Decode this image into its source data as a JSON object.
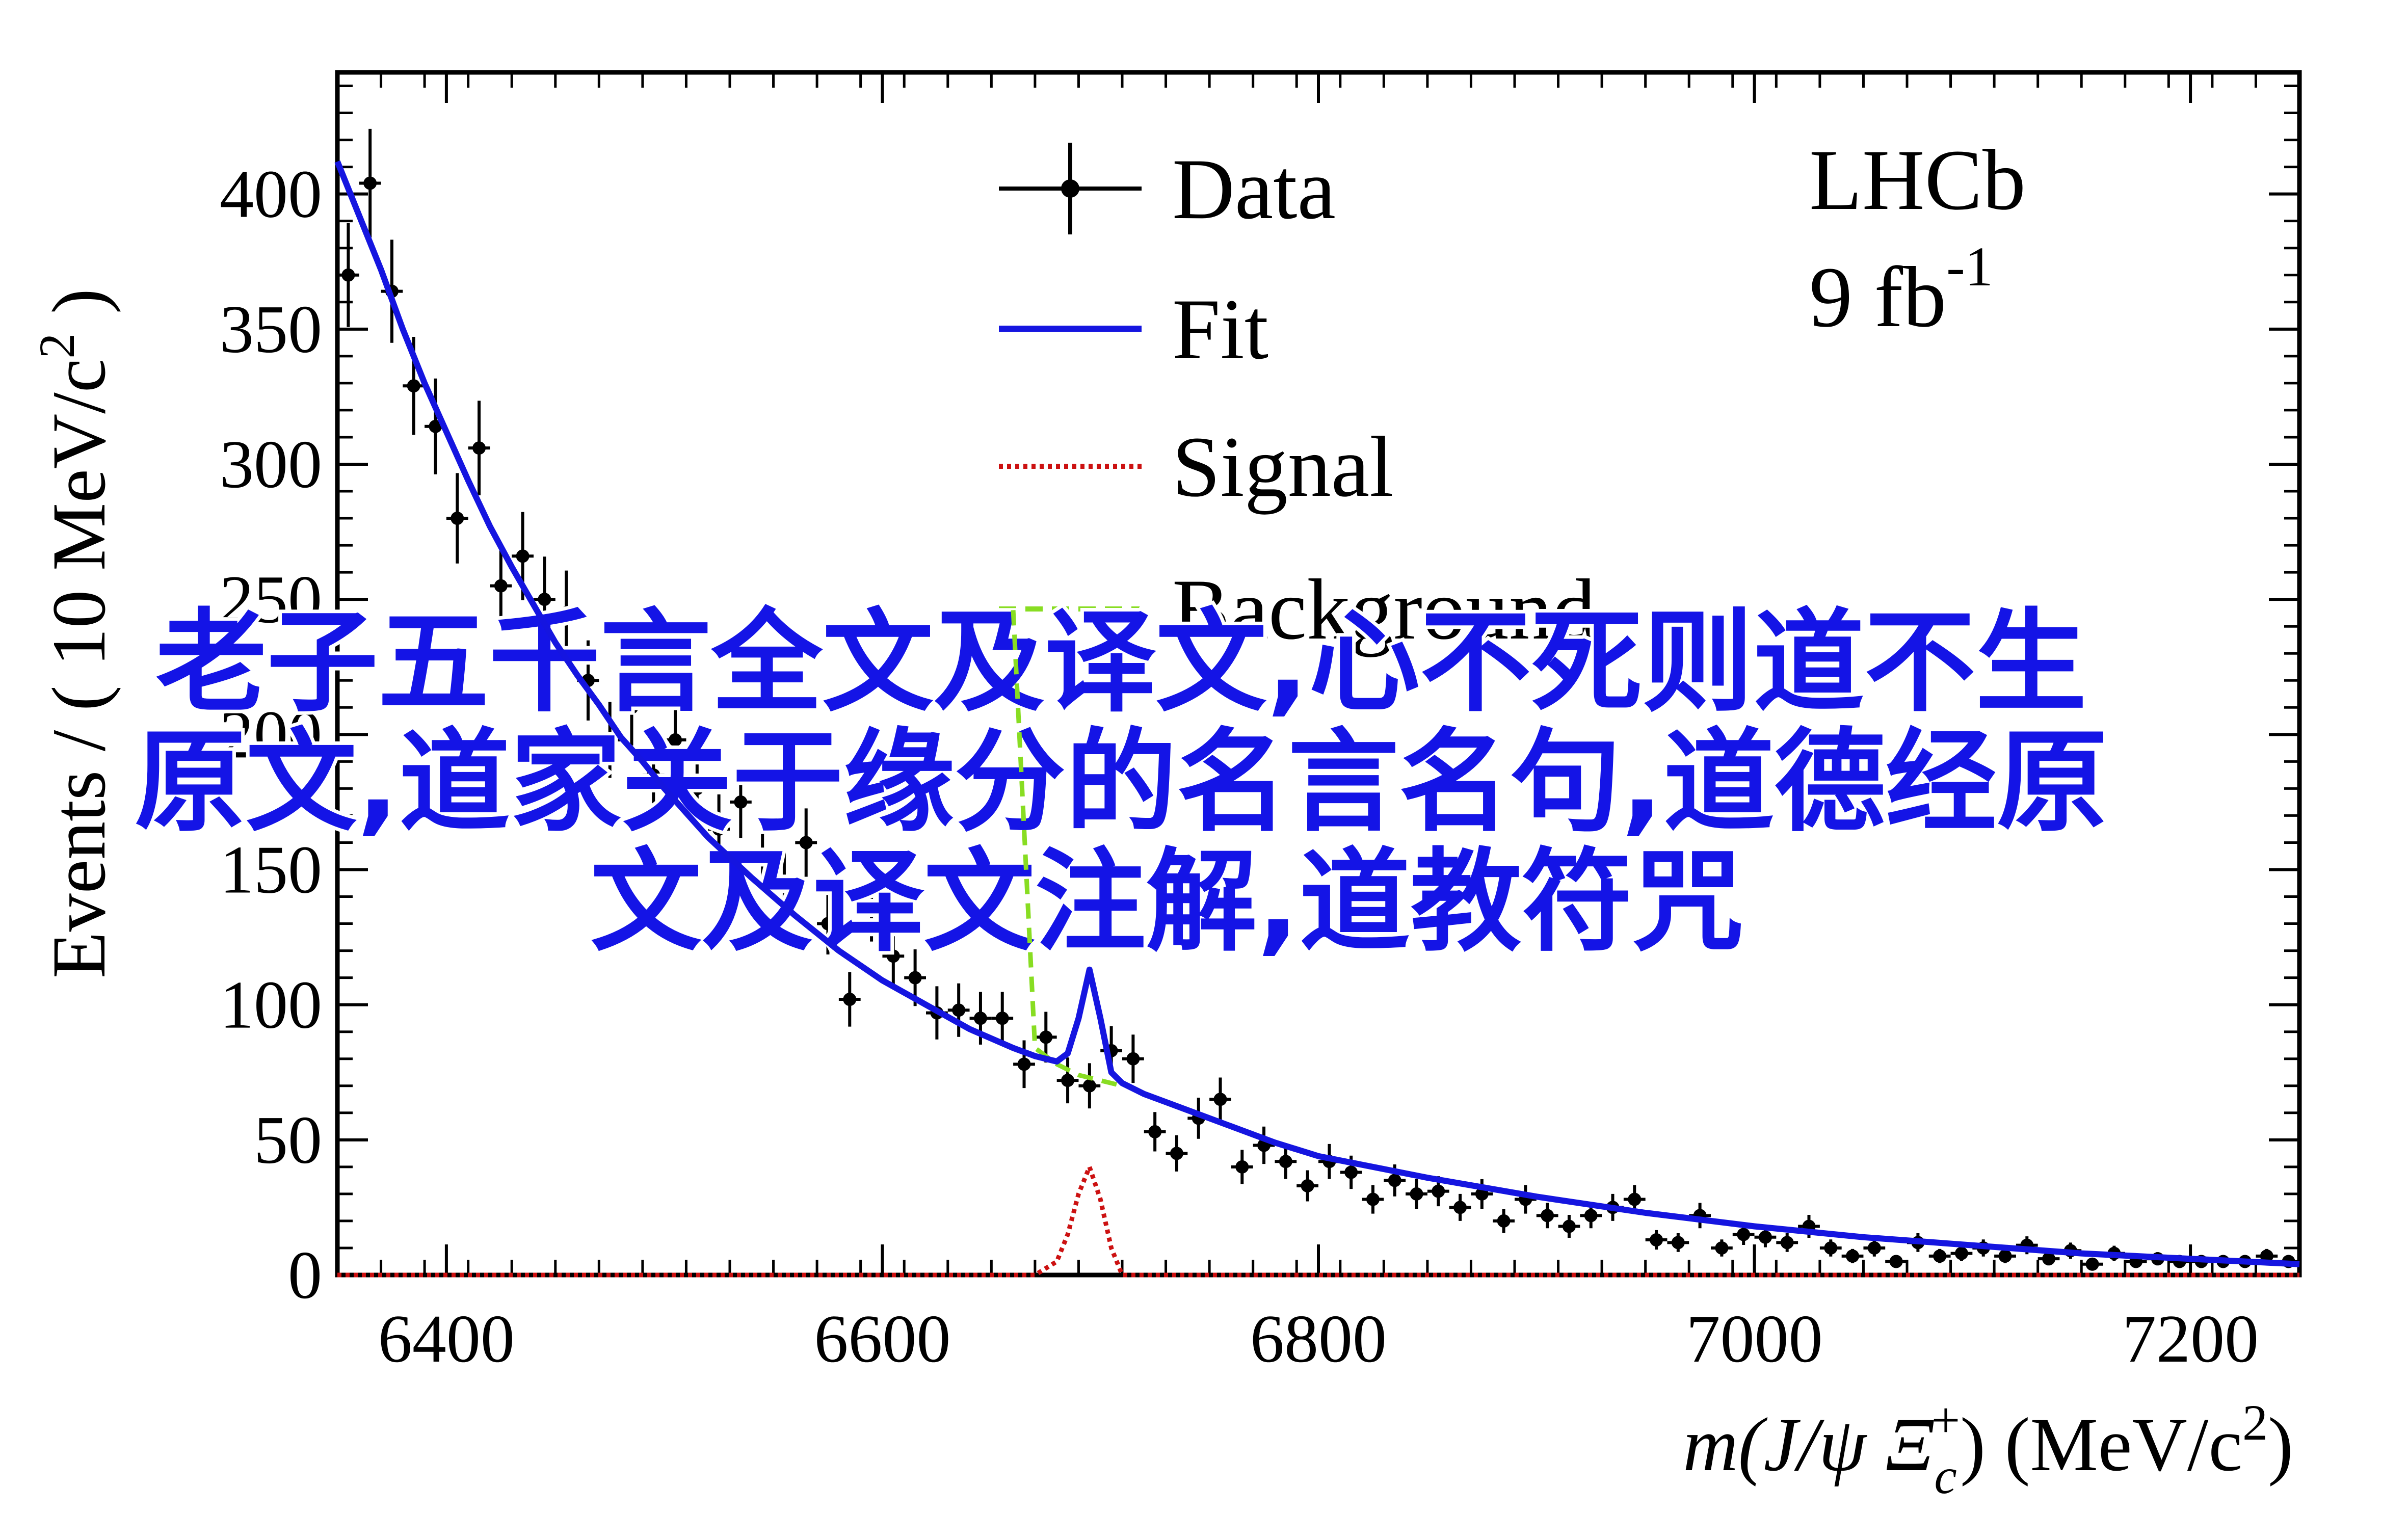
{
  "chart_data": {
    "type": "line",
    "experiment": "LHCb",
    "luminosity": "9 fb",
    "luminosity_exp": "-1",
    "xlabel": "m(J/ψ Ξ",
    "xlabel_sub": "c",
    "xlabel_sup": "+",
    "xlabel_tail": ") (MeV/c",
    "xlabel_tail_sup": "2",
    "xlabel_close": ")",
    "ylabel": "Events / ( 10 MeV/c",
    "ylabel_sup": "2",
    "ylabel_close": " )",
    "xlim": [
      6350,
      7250
    ],
    "ylim": [
      0,
      445
    ],
    "xticks": [
      "6400",
      "6600",
      "6800",
      "7000",
      "7200"
    ],
    "yticks": [
      "0",
      "50",
      "100",
      "150",
      "200",
      "250",
      "300",
      "350",
      "400"
    ],
    "grid": false,
    "legend_position": "top-center",
    "legend": {
      "data": "Data",
      "fit": "Fit",
      "signal": "Signal",
      "background": "Background"
    },
    "colors": {
      "data": "#000000",
      "fit": "#1515e0",
      "signal": "#cc1111",
      "background": "#88dd22",
      "overlay_text": "#1414e6"
    },
    "data_points": {
      "x": [
        6355,
        6365,
        6375,
        6385,
        6395,
        6405,
        6415,
        6425,
        6435,
        6445,
        6455,
        6465,
        6475,
        6485,
        6495,
        6505,
        6515,
        6525,
        6535,
        6545,
        6555,
        6565,
        6575,
        6585,
        6595,
        6605,
        6615,
        6625,
        6635,
        6645,
        6655,
        6665,
        6675,
        6685,
        6695,
        6705,
        6715,
        6725,
        6735,
        6745,
        6755,
        6765,
        6775,
        6785,
        6795,
        6805,
        6815,
        6825,
        6835,
        6845,
        6855,
        6865,
        6875,
        6885,
        6895,
        6905,
        6915,
        6925,
        6935,
        6945,
        6955,
        6965,
        6975,
        6985,
        6995,
        7005,
        7015,
        7025,
        7035,
        7045,
        7055,
        7065,
        7075,
        7085,
        7095,
        7105,
        7115,
        7125,
        7135,
        7145,
        7155,
        7165,
        7175,
        7185,
        7195,
        7205,
        7215,
        7225,
        7235,
        7245
      ],
      "y": [
        370,
        404,
        364,
        329,
        314,
        280,
        306,
        255,
        266,
        250,
        245,
        220,
        198,
        210,
        185,
        198,
        180,
        165,
        175,
        155,
        145,
        160,
        130,
        102,
        135,
        118,
        110,
        97,
        98,
        95,
        95,
        78,
        88,
        72,
        70,
        83,
        80,
        53,
        45,
        58,
        65,
        40,
        48,
        42,
        33,
        42,
        38,
        28,
        35,
        30,
        31,
        25,
        30,
        20,
        28,
        22,
        18,
        22,
        25,
        28,
        13,
        12,
        22,
        10,
        15,
        14,
        12,
        18,
        10,
        7,
        10,
        5,
        12,
        7,
        8,
        10,
        7,
        11,
        6,
        9,
        4,
        8,
        5,
        6,
        5,
        5,
        5,
        5,
        7,
        5
      ]
    },
    "fit_curve": {
      "x": [
        6350,
        6360,
        6370,
        6380,
        6390,
        6400,
        6410,
        6420,
        6430,
        6440,
        6450,
        6460,
        6470,
        6480,
        6490,
        6500,
        6520,
        6540,
        6560,
        6580,
        6600,
        6620,
        6640,
        6660,
        6670,
        6680,
        6685,
        6690,
        6695,
        6700,
        6705,
        6710,
        6720,
        6740,
        6760,
        6780,
        6800,
        6850,
        6900,
        6950,
        7000,
        7050,
        7100,
        7150,
        7200,
        7250
      ],
      "y": [
        412,
        392,
        372,
        350,
        330,
        312,
        294,
        277,
        262,
        248,
        234,
        222,
        211,
        199,
        190,
        180,
        162,
        147,
        133,
        120,
        109,
        100,
        91,
        84,
        81,
        79,
        82,
        95,
        113,
        95,
        75,
        71,
        67,
        61,
        55,
        49,
        44,
        36,
        29,
        23,
        18,
        14,
        11,
        8,
        6,
        4
      ]
    },
    "background_curve": {
      "x": [
        6660,
        6670,
        6680,
        6690,
        6700,
        6710
      ],
      "y": [
        246,
        84,
        78,
        74,
        72,
        70
      ]
    },
    "signal_curve": {
      "x": [
        6350,
        6670,
        6680,
        6685,
        6690,
        6695,
        6700,
        6705,
        6710,
        7250
      ],
      "y": [
        0,
        0,
        5,
        15,
        30,
        40,
        28,
        10,
        0,
        0
      ]
    }
  },
  "overlay": {
    "line1": "老子五千言全文及译文,心不死则道不生",
    "line2": "原文,道家关于缘分的名言名句,道德经原",
    "line3": "文及译文注解,道教符咒"
  }
}
